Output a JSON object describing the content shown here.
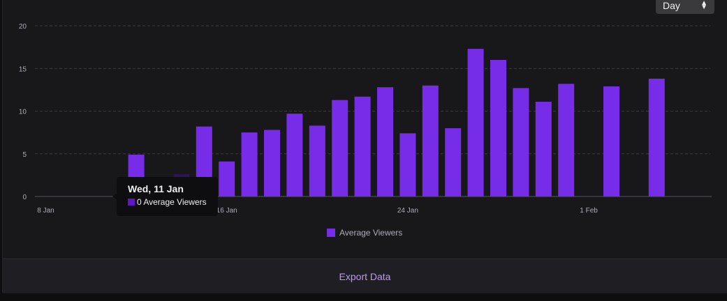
{
  "controls": {
    "granularity": "Day"
  },
  "chart_data": {
    "type": "bar",
    "x_unit": "day",
    "categories": [
      "8 Jan",
      "9 Jan",
      "10 Jan",
      "11 Jan",
      "12 Jan",
      "13 Jan",
      "14 Jan",
      "15 Jan",
      "16 Jan",
      "17 Jan",
      "18 Jan",
      "19 Jan",
      "20 Jan",
      "21 Jan",
      "22 Jan",
      "23 Jan",
      "24 Jan",
      "25 Jan",
      "26 Jan",
      "27 Jan",
      "28 Jan",
      "29 Jan",
      "30 Jan",
      "31 Jan",
      "1 Feb",
      "2 Feb",
      "3 Feb",
      "4 Feb",
      "5 Feb"
    ],
    "series": [
      {
        "name": "Average Viewers",
        "color": "#772ce8",
        "values": [
          0,
          0,
          0,
          0,
          4.9,
          1.5,
          2.6,
          8.2,
          4.1,
          7.5,
          7.8,
          9.7,
          8.3,
          11.3,
          11.7,
          12.8,
          7.4,
          13.0,
          8.0,
          17.3,
          16.0,
          12.7,
          11.1,
          13.2,
          0,
          12.9,
          0,
          13.8,
          0
        ]
      }
    ],
    "xticks": [
      "8 Jan",
      "16 Jan",
      "24 Jan",
      "1 Feb"
    ],
    "yticks": [
      0,
      5,
      10,
      15,
      20
    ],
    "ylim": [
      0,
      20
    ],
    "grid": true,
    "legend": "bottom-center"
  },
  "tooltip": {
    "date": "Wed, 11 Jan",
    "value_text": "0 Average Viewers"
  },
  "footer": {
    "export_label": "Export Data"
  }
}
